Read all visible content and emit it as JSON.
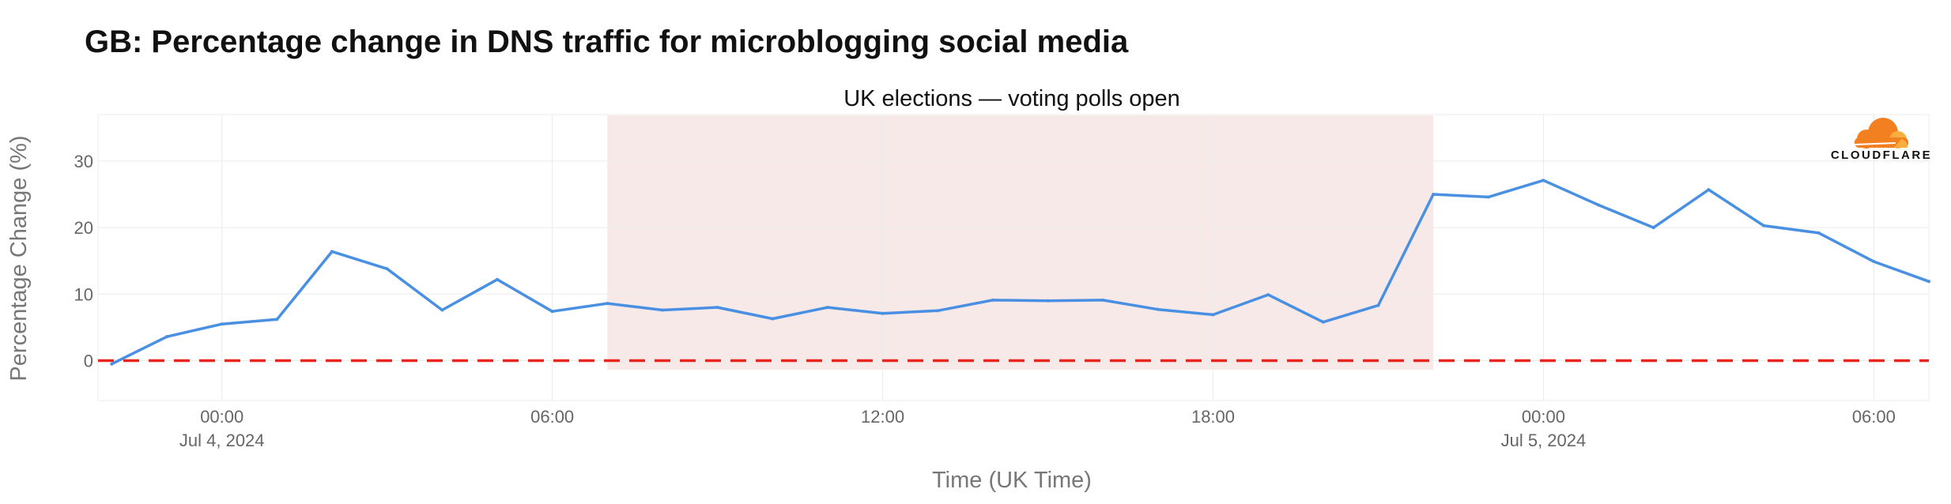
{
  "chart_data": {
    "type": "line",
    "title": "GB: Percentage change in DNS traffic for microblogging social media",
    "subtitle": "UK elections — voting polls open",
    "xlabel": "Time (UK Time)",
    "ylabel": "Percentage Change (%)",
    "brand": "CLOUDFLARE",
    "x_axis_type": "datetime",
    "xlim": [
      "2024-07-03T21:45",
      "2024-07-05T07:00"
    ],
    "ylim": [
      -6,
      37
    ],
    "yticks": [
      0,
      10,
      20,
      30
    ],
    "xticks": [
      {
        "x": "2024-07-04T00:00",
        "label": "00:00",
        "sublabel": "Jul 4, 2024"
      },
      {
        "x": "2024-07-04T06:00",
        "label": "06:00",
        "sublabel": ""
      },
      {
        "x": "2024-07-04T12:00",
        "label": "12:00",
        "sublabel": ""
      },
      {
        "x": "2024-07-04T18:00",
        "label": "18:00",
        "sublabel": ""
      },
      {
        "x": "2024-07-05T00:00",
        "label": "00:00",
        "sublabel": "Jul 5, 2024"
      },
      {
        "x": "2024-07-05T06:00",
        "label": "06:00",
        "sublabel": ""
      }
    ],
    "grid": true,
    "reference_line": {
      "y": 0,
      "color": "#e8251f",
      "style": "dashed"
    },
    "shaded_region": {
      "x0": "2024-07-04T07:00",
      "x1": "2024-07-04T22:00",
      "color": "#f8e5e5"
    },
    "series": [
      {
        "color": "#4a90e2",
        "points": [
          {
            "x": "2024-07-03T22:00",
            "y": -0.5
          },
          {
            "x": "2024-07-03T23:00",
            "y": 3.6
          },
          {
            "x": "2024-07-04T00:00",
            "y": 5.5
          },
          {
            "x": "2024-07-04T01:00",
            "y": 6.2
          },
          {
            "x": "2024-07-04T02:00",
            "y": 16.4
          },
          {
            "x": "2024-07-04T03:00",
            "y": 13.8
          },
          {
            "x": "2024-07-04T04:00",
            "y": 7.6
          },
          {
            "x": "2024-07-04T05:00",
            "y": 12.2
          },
          {
            "x": "2024-07-04T06:00",
            "y": 7.4
          },
          {
            "x": "2024-07-04T07:00",
            "y": 8.6
          },
          {
            "x": "2024-07-04T08:00",
            "y": 7.6
          },
          {
            "x": "2024-07-04T09:00",
            "y": 8.0
          },
          {
            "x": "2024-07-04T10:00",
            "y": 6.3
          },
          {
            "x": "2024-07-04T11:00",
            "y": 8.0
          },
          {
            "x": "2024-07-04T12:00",
            "y": 7.1
          },
          {
            "x": "2024-07-04T13:00",
            "y": 7.5
          },
          {
            "x": "2024-07-04T14:00",
            "y": 9.1
          },
          {
            "x": "2024-07-04T15:00",
            "y": 9.0
          },
          {
            "x": "2024-07-04T16:00",
            "y": 9.1
          },
          {
            "x": "2024-07-04T17:00",
            "y": 7.7
          },
          {
            "x": "2024-07-04T18:00",
            "y": 6.9
          },
          {
            "x": "2024-07-04T19:00",
            "y": 9.9
          },
          {
            "x": "2024-07-04T20:00",
            "y": 5.8
          },
          {
            "x": "2024-07-04T21:00",
            "y": 8.3
          },
          {
            "x": "2024-07-04T22:00",
            "y": 25.0
          },
          {
            "x": "2024-07-04T23:00",
            "y": 24.6
          },
          {
            "x": "2024-07-05T00:00",
            "y": 27.1
          },
          {
            "x": "2024-07-05T01:00",
            "y": 23.4
          },
          {
            "x": "2024-07-05T02:00",
            "y": 20.0
          },
          {
            "x": "2024-07-05T03:00",
            "y": 25.7
          },
          {
            "x": "2024-07-05T04:00",
            "y": 20.3
          },
          {
            "x": "2024-07-05T05:00",
            "y": 19.2
          },
          {
            "x": "2024-07-05T06:00",
            "y": 14.9
          },
          {
            "x": "2024-07-05T07:00",
            "y": 11.9
          }
        ]
      }
    ]
  }
}
